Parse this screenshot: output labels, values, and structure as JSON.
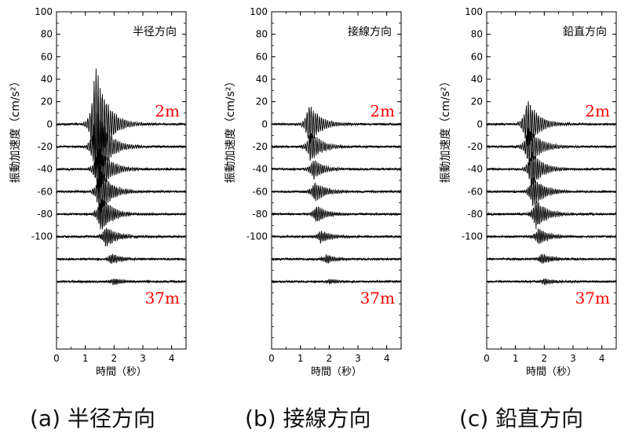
{
  "figure": {
    "y_axis_label": "振動加速度（cm/s²）",
    "x_axis_label": "時間（秒）",
    "top_depth_label": "2m",
    "bottom_depth_label": "37m",
    "label_color": "#ff0000",
    "trace_color": "#000000"
  },
  "chart_data": [
    {
      "type": "line",
      "title": "半径方向",
      "caption": "(a) 半径方向",
      "xlabel": "時間（秒）",
      "ylabel": "振動加速度（cm/s²）",
      "xlim": [
        0,
        4.5
      ],
      "ylim": [
        -200,
        100
      ],
      "x_ticks": [
        "0",
        "1",
        "2",
        "3",
        "4"
      ],
      "y_ticks": [
        "100",
        "80",
        "60",
        "40",
        "20",
        "0",
        "-20",
        "-40",
        "-60",
        "-80",
        "-100"
      ],
      "grid": false,
      "series": [
        {
          "name": "2m",
          "offset": 0,
          "onset": 0.9,
          "peak_time": 1.35,
          "peak_amplitude": 60
        },
        {
          "offset": -20,
          "onset": 0.9,
          "peak_time": 1.38,
          "peak_amplitude": 40
        },
        {
          "offset": -40,
          "onset": 1.1,
          "peak_time": 1.45,
          "peak_amplitude": 25
        },
        {
          "offset": -60,
          "onset": 1.2,
          "peak_time": 1.5,
          "peak_amplitude": 22
        },
        {
          "offset": -80,
          "onset": 1.2,
          "peak_time": 1.55,
          "peak_amplitude": 18
        },
        {
          "offset": -100,
          "onset": 1.3,
          "peak_time": 1.7,
          "peak_amplitude": 10
        },
        {
          "offset": -120,
          "onset": 1.4,
          "peak_time": 1.9,
          "peak_amplitude": 5
        },
        {
          "name": "37m",
          "offset": -140,
          "onset": 1.5,
          "peak_time": 2.0,
          "peak_amplitude": 3
        }
      ]
    },
    {
      "type": "line",
      "title": "接線方向",
      "caption": "(b) 接線方向",
      "xlabel": "時間（秒）",
      "ylabel": "振動加速度（cm/s²）",
      "xlim": [
        0,
        4.5
      ],
      "ylim": [
        -200,
        100
      ],
      "x_ticks": [
        "0",
        "1",
        "2",
        "3",
        "4"
      ],
      "y_ticks": [
        "100",
        "80",
        "60",
        "40",
        "20",
        "0",
        "-20",
        "-40",
        "-60",
        "-80",
        "-100"
      ],
      "grid": false,
      "series": [
        {
          "name": "2m",
          "offset": 0,
          "onset": 0.8,
          "peak_time": 1.3,
          "peak_amplitude": 20
        },
        {
          "offset": -20,
          "onset": 0.9,
          "peak_time": 1.35,
          "peak_amplitude": 15
        },
        {
          "offset": -40,
          "onset": 1.1,
          "peak_time": 1.45,
          "peak_amplitude": 10
        },
        {
          "offset": -60,
          "onset": 1.2,
          "peak_time": 1.5,
          "peak_amplitude": 10
        },
        {
          "offset": -80,
          "onset": 1.2,
          "peak_time": 1.55,
          "peak_amplitude": 8
        },
        {
          "offset": -100,
          "onset": 1.3,
          "peak_time": 1.7,
          "peak_amplitude": 6
        },
        {
          "offset": -120,
          "onset": 1.4,
          "peak_time": 1.9,
          "peak_amplitude": 4
        },
        {
          "name": "37m",
          "offset": -140,
          "onset": 1.5,
          "peak_time": 2.0,
          "peak_amplitude": 2
        }
      ]
    },
    {
      "type": "line",
      "title": "鉛直方向",
      "caption": "(c) 鉛直方向",
      "xlabel": "時間（秒）",
      "ylabel": "振動加速度（cm/s²）",
      "xlim": [
        0,
        4.5
      ],
      "ylim": [
        -200,
        100
      ],
      "x_ticks": [
        "0",
        "1",
        "2",
        "3",
        "4"
      ],
      "y_ticks": [
        "100",
        "80",
        "60",
        "40",
        "20",
        "0",
        "-20",
        "-40",
        "-60",
        "-80",
        "-100"
      ],
      "grid": false,
      "series": [
        {
          "name": "2m",
          "offset": 0,
          "onset": 0.9,
          "peak_time": 1.4,
          "peak_amplitude": 25
        },
        {
          "offset": -20,
          "onset": 1.0,
          "peak_time": 1.45,
          "peak_amplitude": 20
        },
        {
          "offset": -40,
          "onset": 1.1,
          "peak_time": 1.55,
          "peak_amplitude": 18
        },
        {
          "offset": -60,
          "onset": 1.2,
          "peak_time": 1.6,
          "peak_amplitude": 16
        },
        {
          "offset": -80,
          "onset": 1.2,
          "peak_time": 1.7,
          "peak_amplitude": 14
        },
        {
          "offset": -100,
          "onset": 1.3,
          "peak_time": 1.8,
          "peak_amplitude": 8
        },
        {
          "offset": -120,
          "onset": 1.4,
          "peak_time": 1.9,
          "peak_amplitude": 5
        },
        {
          "name": "37m",
          "offset": -140,
          "onset": 1.5,
          "peak_time": 2.0,
          "peak_amplitude": 3
        }
      ]
    }
  ]
}
